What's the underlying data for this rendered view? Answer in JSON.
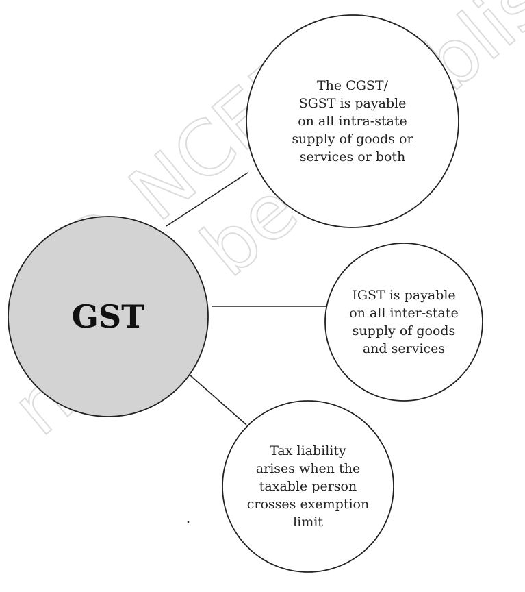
{
  "watermark": {
    "lines": [
      "© NCERT",
      "not to be republished"
    ]
  },
  "nodes": [
    {
      "label": [
        "GST"
      ]
    },
    {
      "label": [
        "The CGST/",
        "SGST  is payable",
        "on all intra-state",
        "supply of goods or",
        "services or both"
      ]
    },
    {
      "label": [
        "IGST is payable",
        "on all inter-state",
        "supply of goods",
        "and services"
      ]
    },
    {
      "label": [
        "Tax liability",
        "arises when the",
        "taxable person",
        "crosses exemption",
        "limit"
      ]
    }
  ]
}
